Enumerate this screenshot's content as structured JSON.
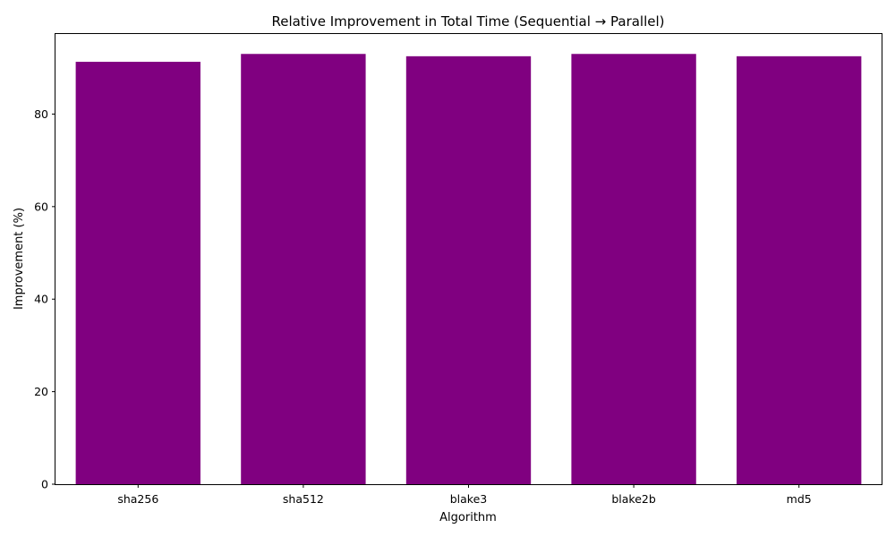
{
  "chart_data": {
    "type": "bar",
    "title": "Relative Improvement in Total Time (Sequential → Parallel)",
    "xlabel": "Algorithm",
    "ylabel": "Improvement (%)",
    "categories": [
      "sha256",
      "sha512",
      "blake3",
      "blake2b",
      "md5"
    ],
    "values": [
      91.3,
      93.0,
      92.5,
      93.0,
      92.5
    ],
    "ylim": [
      0,
      97.5
    ],
    "yticks": [
      0,
      20,
      40,
      60,
      80
    ],
    "grid": false,
    "bar_color": "#800080"
  }
}
